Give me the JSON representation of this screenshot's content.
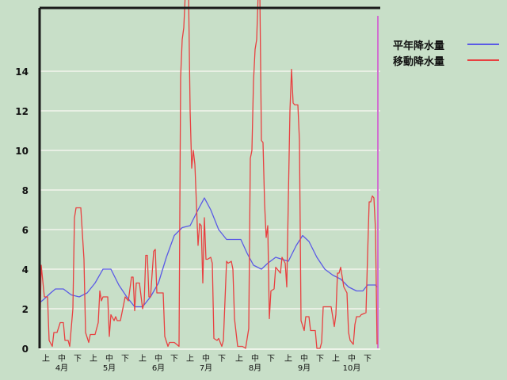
{
  "chart_data": {
    "type": "line",
    "title": "",
    "xlabel": "",
    "ylabel": "",
    "ylim": [
      0,
      17.2
    ],
    "yticks": [
      "0",
      "2",
      "4",
      "6",
      "8",
      "10",
      "12",
      "14"
    ],
    "grid": true,
    "legend_position": "top-right",
    "x_range": [
      "4/1",
      "10/31"
    ],
    "x_dekad_labels": [
      "上",
      "中",
      "下"
    ],
    "x_month_labels": [
      "4月",
      "5月",
      "6月",
      "7月",
      "8月",
      "9月",
      "10月"
    ],
    "series": [
      {
        "name": "平年降水量",
        "color": "#5a5ae6",
        "points": [
          [
            "4/1",
            2.3
          ],
          [
            "4/4",
            2.5
          ],
          [
            "4/8",
            2.8
          ],
          [
            "4/11",
            3.0
          ],
          [
            "4/16",
            3.0
          ],
          [
            "4/21",
            2.7
          ],
          [
            "4/26",
            2.6
          ],
          [
            "5/1",
            2.8
          ],
          [
            "5/6",
            3.3
          ],
          [
            "5/11",
            4.0
          ],
          [
            "5/16",
            4.0
          ],
          [
            "5/21",
            3.2
          ],
          [
            "5/26",
            2.6
          ],
          [
            "5/31",
            2.1
          ],
          [
            "6/5",
            2.1
          ],
          [
            "6/10",
            2.6
          ],
          [
            "6/15",
            3.3
          ],
          [
            "6/20",
            4.6
          ],
          [
            "6/25",
            5.7
          ],
          [
            "6/30",
            6.1
          ],
          [
            "7/5",
            6.2
          ],
          [
            "7/10",
            7.0
          ],
          [
            "7/14",
            7.6
          ],
          [
            "7/18",
            7.0
          ],
          [
            "7/23",
            6.0
          ],
          [
            "7/28",
            5.5
          ],
          [
            "8/2",
            5.5
          ],
          [
            "8/6",
            5.5
          ],
          [
            "8/10",
            4.8
          ],
          [
            "8/14",
            4.2
          ],
          [
            "8/19",
            4.0
          ],
          [
            "8/23",
            4.3
          ],
          [
            "8/28",
            4.6
          ],
          [
            "9/1",
            4.5
          ],
          [
            "9/5",
            4.4
          ],
          [
            "9/10",
            5.2
          ],
          [
            "9/14",
            5.7
          ],
          [
            "9/18",
            5.4
          ],
          [
            "9/23",
            4.6
          ],
          [
            "9/28",
            4.0
          ],
          [
            "10/3",
            3.7
          ],
          [
            "10/8",
            3.5
          ],
          [
            "10/13",
            3.1
          ],
          [
            "10/18",
            2.9
          ],
          [
            "10/22",
            2.9
          ],
          [
            "10/25",
            3.2
          ],
          [
            "10/30",
            3.2
          ],
          [
            "10/31",
            3.1
          ]
        ]
      },
      {
        "name": "移動降水量",
        "color": "#e84040",
        "points": [
          [
            "4/1",
            0
          ],
          [
            "4/2",
            4.2
          ],
          [
            "4/4",
            2.6
          ],
          [
            "4/6",
            2.6
          ],
          [
            "4/7",
            0.4
          ],
          [
            "4/9",
            0.1
          ],
          [
            "4/10",
            0.8
          ],
          [
            "4/12",
            0.8
          ],
          [
            "4/14",
            1.3
          ],
          [
            "4/16",
            1.3
          ],
          [
            "4/17",
            0.4
          ],
          [
            "4/19",
            0.4
          ],
          [
            "4/20",
            0.1
          ],
          [
            "4/22",
            2
          ],
          [
            "4/23",
            6.6
          ],
          [
            "4/24",
            7.1
          ],
          [
            "4/27",
            7.1
          ],
          [
            "4/29",
            4.5
          ],
          [
            "4/30",
            0.8
          ],
          [
            "5/2",
            0.3
          ],
          [
            "5/3",
            0.7
          ],
          [
            "5/6",
            0.7
          ],
          [
            "5/8",
            1.3
          ],
          [
            "5/9",
            2.9
          ],
          [
            "5/10",
            2.4
          ],
          [
            "5/11",
            2.6
          ],
          [
            "5/14",
            2.6
          ],
          [
            "5/15",
            0.6
          ],
          [
            "5/16",
            1.7
          ],
          [
            "5/18",
            1.4
          ],
          [
            "5/19",
            1.6
          ],
          [
            "5/20",
            1.4
          ],
          [
            "5/22",
            1.4
          ],
          [
            "5/25",
            2.6
          ],
          [
            "5/27",
            2.4
          ],
          [
            "5/29",
            3.6
          ],
          [
            "5/30",
            3.6
          ],
          [
            "5/31",
            1.9
          ],
          [
            "6/1",
            3.3
          ],
          [
            "6/3",
            3.3
          ],
          [
            "6/5",
            2
          ],
          [
            "6/6",
            2.3
          ],
          [
            "6/7",
            4.7
          ],
          [
            "6/8",
            4.7
          ],
          [
            "6/9",
            2.6
          ],
          [
            "6/10",
            2.6
          ],
          [
            "6/12",
            4.9
          ],
          [
            "6/13",
            5.0
          ],
          [
            "6/14",
            2.8
          ],
          [
            "6/18",
            2.8
          ],
          [
            "6/19",
            0.6
          ],
          [
            "6/21",
            0.1
          ],
          [
            "6/22",
            0.3
          ],
          [
            "6/25",
            0.3
          ],
          [
            "6/28",
            0.1
          ],
          [
            "6/29",
            13.7
          ],
          [
            "6/30",
            15.6
          ],
          [
            "7/1",
            16.2
          ],
          [
            "7/2",
            18
          ],
          [
            "7/4",
            18
          ],
          [
            "7/5",
            12
          ],
          [
            "7/6",
            9.1
          ],
          [
            "7/7",
            10
          ],
          [
            "7/8",
            9.3
          ],
          [
            "7/10",
            5.2
          ],
          [
            "7/11",
            6.3
          ],
          [
            "7/12",
            6.2
          ],
          [
            "7/13",
            3.3
          ],
          [
            "7/14",
            6.6
          ],
          [
            "7/15",
            4.5
          ],
          [
            "7/16",
            4.5
          ],
          [
            "7/18",
            4.6
          ],
          [
            "7/19",
            4.3
          ],
          [
            "7/20",
            0.5
          ],
          [
            "7/22",
            0.4
          ],
          [
            "7/23",
            0.5
          ],
          [
            "7/25",
            0.1
          ],
          [
            "7/26",
            0.4
          ],
          [
            "7/28",
            4.4
          ],
          [
            "7/29",
            4.3
          ],
          [
            "7/31",
            4.4
          ],
          [
            "8/1",
            4
          ],
          [
            "8/2",
            1.5
          ],
          [
            "8/4",
            0.1
          ],
          [
            "8/7",
            0.1
          ],
          [
            "8/9",
            0
          ],
          [
            "8/11",
            1
          ],
          [
            "8/12",
            9.6
          ],
          [
            "8/13",
            10
          ],
          [
            "8/14",
            13.5
          ],
          [
            "8/15",
            15.1
          ],
          [
            "8/16",
            15.6
          ],
          [
            "8/17",
            18
          ],
          [
            "8/18",
            18
          ],
          [
            "8/19",
            10.5
          ],
          [
            "8/20",
            10.4
          ],
          [
            "8/21",
            7.3
          ],
          [
            "8/22",
            5.6
          ],
          [
            "8/23",
            6.2
          ],
          [
            "8/24",
            1.5
          ],
          [
            "8/25",
            2.9
          ],
          [
            "8/27",
            3
          ],
          [
            "8/28",
            4.1
          ],
          [
            "8/30",
            3.9
          ],
          [
            "8/31",
            3.8
          ],
          [
            "9/1",
            4.6
          ],
          [
            "9/3",
            4.3
          ],
          [
            "9/4",
            3.1
          ],
          [
            "9/5",
            7.6
          ],
          [
            "9/6",
            12
          ],
          [
            "9/7",
            14.1
          ],
          [
            "9/8",
            12.4
          ],
          [
            "9/9",
            12.3
          ],
          [
            "9/11",
            12.3
          ],
          [
            "9/12",
            10.5
          ],
          [
            "9/13",
            1.4
          ],
          [
            "9/15",
            0.9
          ],
          [
            "9/16",
            1.6
          ],
          [
            "9/18",
            1.6
          ],
          [
            "9/19",
            0.9
          ],
          [
            "9/22",
            0.9
          ],
          [
            "9/23",
            0
          ],
          [
            "9/25",
            0
          ],
          [
            "9/26",
            0.3
          ],
          [
            "9/27",
            2.1
          ],
          [
            "10/2",
            2.1
          ],
          [
            "10/4",
            1.1
          ],
          [
            "10/5",
            1.7
          ],
          [
            "10/6",
            3.8
          ],
          [
            "10/7",
            3.8
          ],
          [
            "10/8",
            4.1
          ],
          [
            "10/10",
            3.1
          ],
          [
            "10/12",
            2.8
          ],
          [
            "10/13",
            0.8
          ],
          [
            "10/14",
            0.4
          ],
          [
            "10/16",
            0.2
          ],
          [
            "10/17",
            1.2
          ],
          [
            "10/18",
            1.6
          ],
          [
            "10/20",
            1.6
          ],
          [
            "10/21",
            1.7
          ],
          [
            "10/24",
            1.8
          ],
          [
            "10/25",
            4.7
          ],
          [
            "10/26",
            7.4
          ],
          [
            "10/27",
            7.4
          ],
          [
            "10/28",
            7.7
          ],
          [
            "10/29",
            7.6
          ],
          [
            "10/30",
            6
          ],
          [
            "10/31",
            0.2
          ]
        ]
      }
    ],
    "colors": {
      "background": "#c8dfc8",
      "grid": "#e8efe4",
      "axis": "#1a1a1a",
      "marker": "#d070d0"
    }
  }
}
